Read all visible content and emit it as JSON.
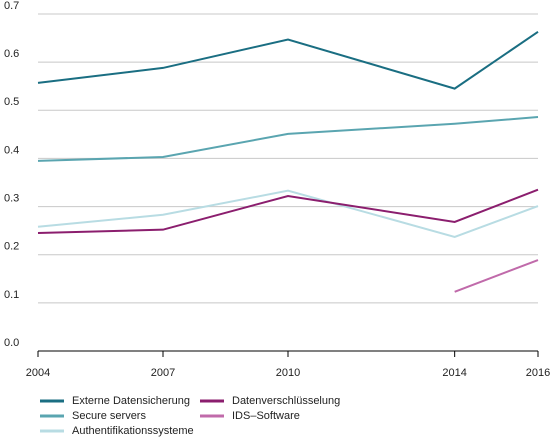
{
  "chart_data": {
    "type": "line",
    "x": [
      2004,
      2007,
      2010,
      2014,
      2016
    ],
    "xlim": [
      2004,
      2016
    ],
    "xticks": [
      2004,
      2007,
      2010,
      2014,
      2016
    ],
    "ylim": [
      0,
      0.7
    ],
    "yticks": [
      {
        "value": 0,
        "label": "0.0"
      },
      0.1,
      0.2,
      0.3,
      0.4,
      0.5,
      0.6,
      0.7
    ],
    "grid": true,
    "series": [
      {
        "name": "Externe Datensicherung",
        "color": "#1a6e82",
        "values": [
          0.557,
          0.588,
          0.647,
          0.545,
          0.663
        ]
      },
      {
        "name": "Secure servers",
        "color": "#5aa5b0",
        "values": [
          0.395,
          0.403,
          0.451,
          0.472,
          0.486
        ]
      },
      {
        "name": "Authentifikationssysteme",
        "color": "#b8dce3",
        "values": [
          0.258,
          0.283,
          0.333,
          0.237,
          0.301
        ]
      },
      {
        "name": "Datenverschlüsselung",
        "color": "#8b1e6e",
        "values": [
          0.245,
          0.252,
          0.322,
          0.268,
          0.335
        ]
      },
      {
        "name": "IDS–Software",
        "color": "#c06aaa",
        "values": [
          null,
          null,
          null,
          0.123,
          0.189
        ]
      }
    ]
  }
}
